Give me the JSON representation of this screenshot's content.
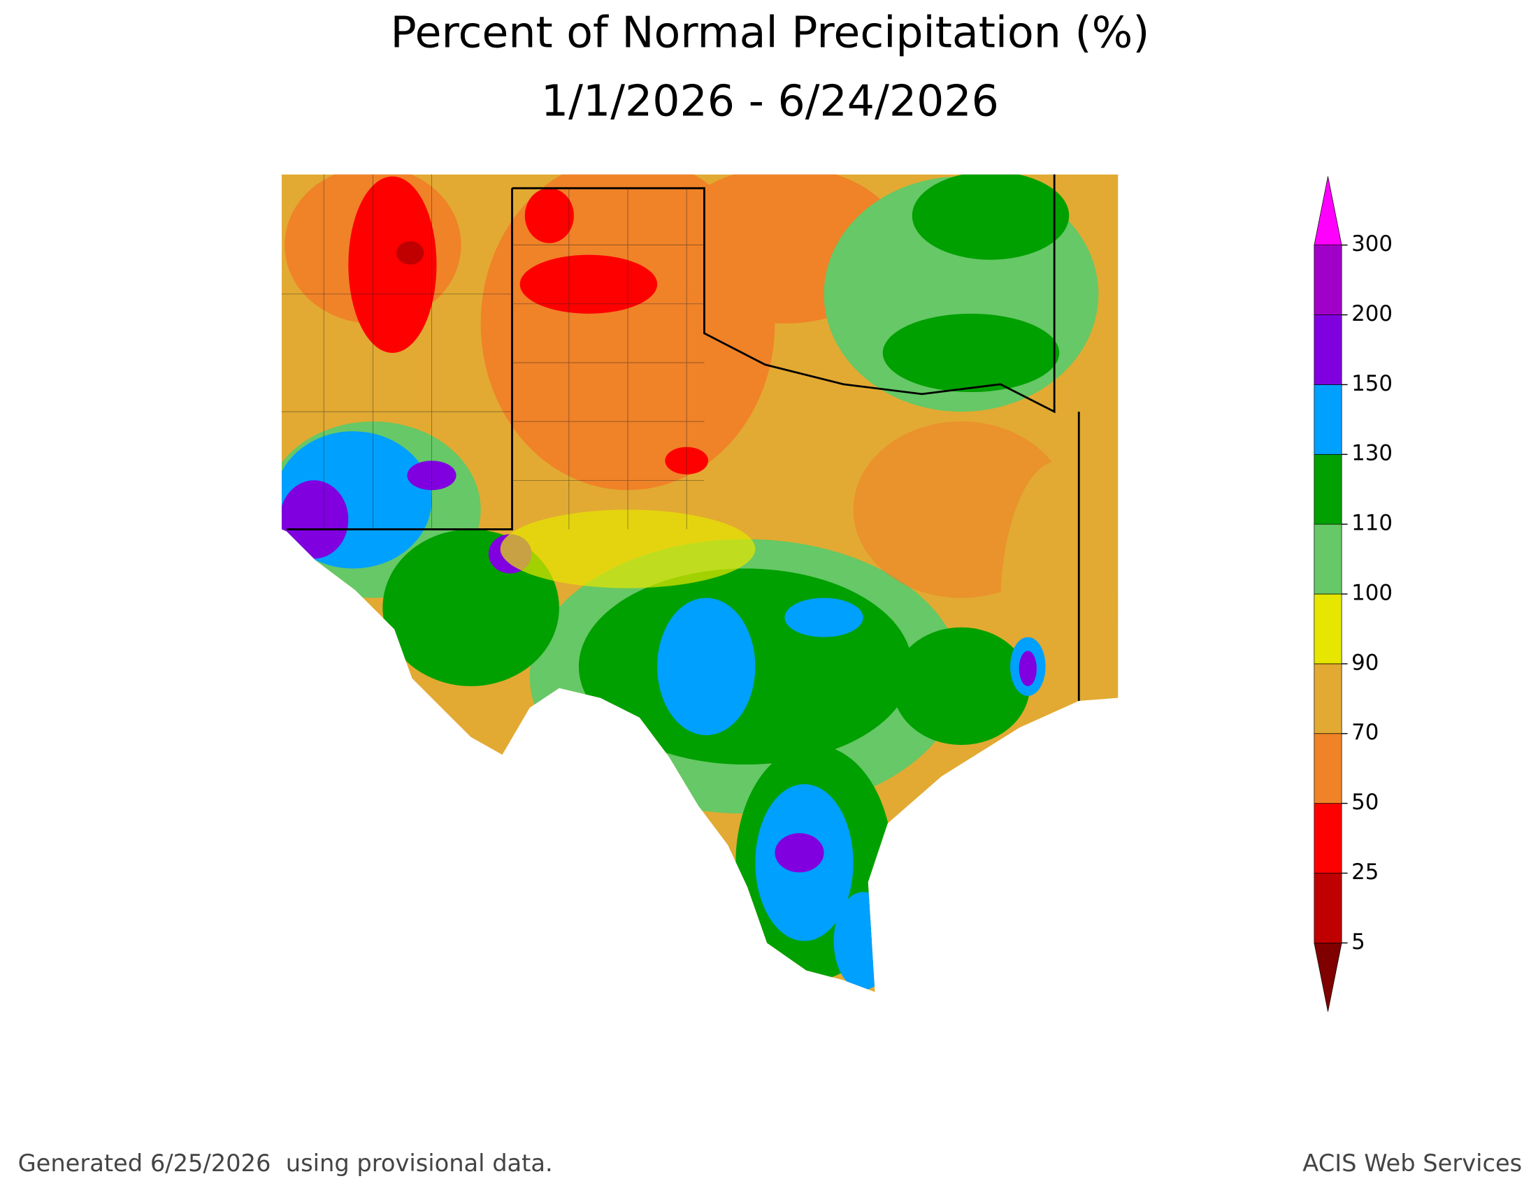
{
  "title": "Percent of Normal Precipitation (%)",
  "subtitle": "1/1/2026 - 6/24/2026",
  "legend": {
    "ticks": [
      5,
      25,
      50,
      70,
      90,
      100,
      110,
      130,
      150,
      200,
      300
    ],
    "colors": [
      "#c00000",
      "#ff0000",
      "#f08228",
      "#e2aa32",
      "#e6e600",
      "#66c866",
      "#00a000",
      "#00a0ff",
      "#8000e0",
      "#a000c8"
    ],
    "under_color": "#800000",
    "over_color": "#ff00ff"
  },
  "footer": {
    "left": "Generated 6/25/2026  using provisional data.",
    "right": "ACIS Web Services"
  }
}
